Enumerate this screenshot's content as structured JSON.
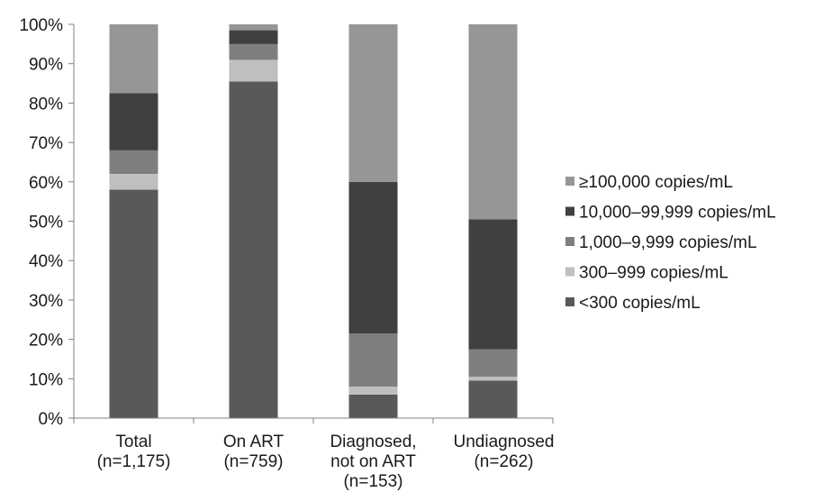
{
  "chart_data": {
    "type": "bar",
    "stacked": true,
    "categories": [
      [
        "Total",
        "(n=1,175)"
      ],
      [
        "On ART",
        "(n=759)"
      ],
      [
        "Diagnosed,",
        "not on ART",
        "(n=153)"
      ],
      [
        "Undiagnosed",
        "(n=262)"
      ]
    ],
    "series": [
      {
        "name": "<300 copies/mL",
        "color": "#595959",
        "values": [
          58,
          85.5,
          6,
          9.5
        ]
      },
      {
        "name": "300–999 copies/mL",
        "color": "#bfbfbf",
        "values": [
          4,
          5.5,
          2,
          1
        ]
      },
      {
        "name": "1,000–9,999 copies/mL",
        "color": "#7f7f7f",
        "values": [
          6,
          4,
          13.5,
          7
        ]
      },
      {
        "name": "10,000–99,999 copies/mL",
        "color": "#404040",
        "values": [
          14.5,
          3.5,
          38.5,
          33
        ]
      },
      {
        "name": "≥100,000 copies/mL",
        "color": "#969696",
        "values": [
          17.5,
          1.5,
          40,
          49.5
        ]
      }
    ],
    "yticks": [
      "0%",
      "10%",
      "20%",
      "30%",
      "40%",
      "50%",
      "60%",
      "70%",
      "80%",
      "90%",
      "100%"
    ],
    "ylim": [
      0,
      100
    ],
    "grid": false,
    "legend": {
      "placement": "right",
      "order": [
        4,
        3,
        2,
        1,
        0
      ]
    }
  }
}
